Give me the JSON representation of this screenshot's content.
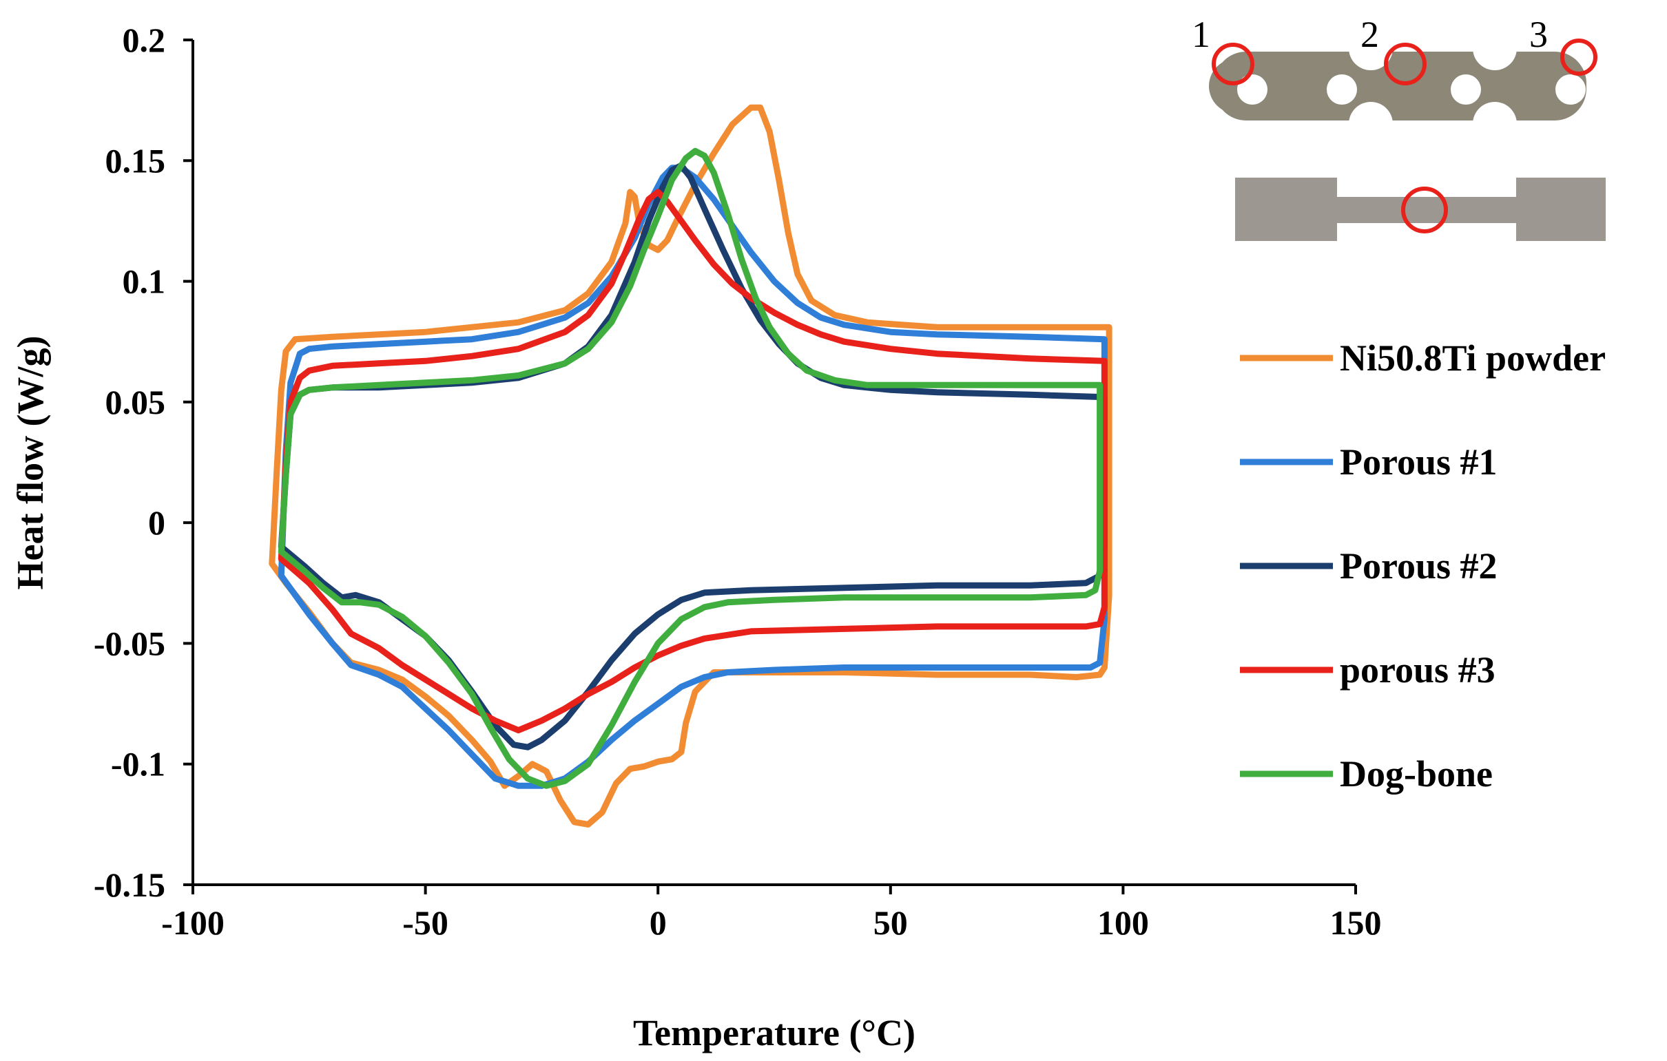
{
  "chart_data": {
    "type": "line",
    "title": "",
    "xlabel": "Temperature (°C)",
    "ylabel": "Heat flow (W/g)",
    "xlim": [
      -100,
      150
    ],
    "ylim": [
      -0.15,
      0.2
    ],
    "xticks": [
      -100,
      -50,
      0,
      50,
      100,
      150
    ],
    "xtick_labels": [
      "-100",
      "-50",
      "0",
      "50",
      "100",
      "150"
    ],
    "yticks": [
      -0.15,
      -0.1,
      -0.05,
      0,
      0.05,
      0.1,
      0.15,
      0.2
    ],
    "ytick_labels": [
      "-0.15",
      "-0.1",
      "-0.05",
      "0",
      "0.05",
      "0.1",
      "0.15",
      "0.2"
    ],
    "grid": false,
    "legend_position": "right",
    "series": [
      {
        "name": "Ni50.8Ti powder",
        "color": "#F28C33",
        "points": [
          [
            -83,
            -0.017
          ],
          [
            -82,
            0.02
          ],
          [
            -81,
            0.055
          ],
          [
            -80,
            0.071
          ],
          [
            -78,
            0.076
          ],
          [
            -70,
            0.077
          ],
          [
            -60,
            0.078
          ],
          [
            -50,
            0.079
          ],
          [
            -40,
            0.081
          ],
          [
            -30,
            0.083
          ],
          [
            -20,
            0.088
          ],
          [
            -15,
            0.095
          ],
          [
            -10,
            0.108
          ],
          [
            -7,
            0.124
          ],
          [
            -6,
            0.137
          ],
          [
            -5,
            0.135
          ],
          [
            -4,
            0.124
          ],
          [
            -2,
            0.115
          ],
          [
            0,
            0.113
          ],
          [
            2,
            0.117
          ],
          [
            4,
            0.125
          ],
          [
            8,
            0.14
          ],
          [
            12,
            0.153
          ],
          [
            16,
            0.165
          ],
          [
            20,
            0.172
          ],
          [
            22,
            0.172
          ],
          [
            24,
            0.162
          ],
          [
            26,
            0.142
          ],
          [
            28,
            0.12
          ],
          [
            30,
            0.103
          ],
          [
            33,
            0.092
          ],
          [
            38,
            0.086
          ],
          [
            45,
            0.083
          ],
          [
            60,
            0.081
          ],
          [
            80,
            0.081
          ],
          [
            97,
            0.081
          ],
          [
            97,
            0.06
          ],
          [
            97,
            -0.03
          ],
          [
            96,
            -0.06
          ],
          [
            95,
            -0.063
          ],
          [
            90,
            -0.064
          ],
          [
            80,
            -0.063
          ],
          [
            60,
            -0.063
          ],
          [
            40,
            -0.062
          ],
          [
            20,
            -0.062
          ],
          [
            12,
            -0.062
          ],
          [
            8,
            -0.07
          ],
          [
            6,
            -0.083
          ],
          [
            5,
            -0.095
          ],
          [
            3,
            -0.098
          ],
          [
            0,
            -0.099
          ],
          [
            -3,
            -0.101
          ],
          [
            -6,
            -0.102
          ],
          [
            -9,
            -0.108
          ],
          [
            -12,
            -0.12
          ],
          [
            -15,
            -0.125
          ],
          [
            -18,
            -0.124
          ],
          [
            -21,
            -0.115
          ],
          [
            -24,
            -0.103
          ],
          [
            -27,
            -0.1
          ],
          [
            -30,
            -0.105
          ],
          [
            -33,
            -0.109
          ],
          [
            -36,
            -0.099
          ],
          [
            -40,
            -0.09
          ],
          [
            -45,
            -0.08
          ],
          [
            -50,
            -0.072
          ],
          [
            -55,
            -0.065
          ],
          [
            -60,
            -0.061
          ],
          [
            -66,
            -0.058
          ],
          [
            -70,
            -0.05
          ],
          [
            -75,
            -0.037
          ],
          [
            -80,
            -0.025
          ],
          [
            -83,
            -0.017
          ]
        ]
      },
      {
        "name": "Porous #1",
        "color": "#2F7ED8",
        "points": [
          [
            -81,
            -0.022
          ],
          [
            -80,
            0.03
          ],
          [
            -79,
            0.058
          ],
          [
            -77,
            0.07
          ],
          [
            -75,
            0.072
          ],
          [
            -70,
            0.073
          ],
          [
            -60,
            0.074
          ],
          [
            -50,
            0.075
          ],
          [
            -40,
            0.076
          ],
          [
            -30,
            0.079
          ],
          [
            -20,
            0.085
          ],
          [
            -15,
            0.091
          ],
          [
            -10,
            0.102
          ],
          [
            -5,
            0.118
          ],
          [
            -2,
            0.132
          ],
          [
            1,
            0.143
          ],
          [
            3,
            0.147
          ],
          [
            5,
            0.147
          ],
          [
            8,
            0.143
          ],
          [
            12,
            0.134
          ],
          [
            16,
            0.123
          ],
          [
            20,
            0.112
          ],
          [
            25,
            0.1
          ],
          [
            30,
            0.091
          ],
          [
            35,
            0.085
          ],
          [
            40,
            0.082
          ],
          [
            50,
            0.079
          ],
          [
            60,
            0.078
          ],
          [
            80,
            0.077
          ],
          [
            96,
            0.076
          ],
          [
            96,
            0.05
          ],
          [
            96,
            -0.04
          ],
          [
            95,
            -0.058
          ],
          [
            93,
            -0.06
          ],
          [
            80,
            -0.06
          ],
          [
            60,
            -0.06
          ],
          [
            40,
            -0.06
          ],
          [
            25,
            -0.061
          ],
          [
            15,
            -0.062
          ],
          [
            10,
            -0.064
          ],
          [
            5,
            -0.068
          ],
          [
            0,
            -0.075
          ],
          [
            -5,
            -0.082
          ],
          [
            -10,
            -0.09
          ],
          [
            -15,
            -0.099
          ],
          [
            -20,
            -0.106
          ],
          [
            -25,
            -0.109
          ],
          [
            -30,
            -0.109
          ],
          [
            -35,
            -0.106
          ],
          [
            -40,
            -0.096
          ],
          [
            -45,
            -0.086
          ],
          [
            -50,
            -0.077
          ],
          [
            -55,
            -0.068
          ],
          [
            -60,
            -0.063
          ],
          [
            -66,
            -0.059
          ],
          [
            -70,
            -0.05
          ],
          [
            -75,
            -0.038
          ],
          [
            -81,
            -0.022
          ]
        ]
      },
      {
        "name": "Porous #2",
        "color": "#1B3E6E",
        "points": [
          [
            -81,
            -0.01
          ],
          [
            -80,
            0.02
          ],
          [
            -79,
            0.045
          ],
          [
            -77,
            0.053
          ],
          [
            -75,
            0.055
          ],
          [
            -70,
            0.056
          ],
          [
            -60,
            0.056
          ],
          [
            -50,
            0.057
          ],
          [
            -40,
            0.058
          ],
          [
            -30,
            0.06
          ],
          [
            -20,
            0.066
          ],
          [
            -15,
            0.073
          ],
          [
            -10,
            0.086
          ],
          [
            -5,
            0.108
          ],
          [
            -2,
            0.125
          ],
          [
            1,
            0.139
          ],
          [
            3,
            0.146
          ],
          [
            5,
            0.148
          ],
          [
            7,
            0.143
          ],
          [
            10,
            0.13
          ],
          [
            14,
            0.113
          ],
          [
            18,
            0.097
          ],
          [
            22,
            0.084
          ],
          [
            26,
            0.074
          ],
          [
            30,
            0.066
          ],
          [
            35,
            0.06
          ],
          [
            40,
            0.057
          ],
          [
            50,
            0.055
          ],
          [
            60,
            0.054
          ],
          [
            80,
            0.053
          ],
          [
            96,
            0.052
          ],
          [
            96,
            0.04
          ],
          [
            96,
            -0.01
          ],
          [
            95,
            -0.022
          ],
          [
            92,
            -0.025
          ],
          [
            80,
            -0.026
          ],
          [
            60,
            -0.026
          ],
          [
            40,
            -0.027
          ],
          [
            20,
            -0.028
          ],
          [
            10,
            -0.029
          ],
          [
            5,
            -0.032
          ],
          [
            0,
            -0.038
          ],
          [
            -5,
            -0.046
          ],
          [
            -10,
            -0.057
          ],
          [
            -15,
            -0.07
          ],
          [
            -20,
            -0.082
          ],
          [
            -25,
            -0.09
          ],
          [
            -28,
            -0.093
          ],
          [
            -31,
            -0.092
          ],
          [
            -35,
            -0.084
          ],
          [
            -40,
            -0.07
          ],
          [
            -45,
            -0.057
          ],
          [
            -50,
            -0.047
          ],
          [
            -55,
            -0.04
          ],
          [
            -60,
            -0.033
          ],
          [
            -65,
            -0.03
          ],
          [
            -68,
            -0.031
          ],
          [
            -72,
            -0.025
          ],
          [
            -76,
            -0.018
          ],
          [
            -81,
            -0.01
          ]
        ]
      },
      {
        "name": "porous #3",
        "color": "#E8211B",
        "points": [
          [
            -81,
            -0.015
          ],
          [
            -80,
            0.025
          ],
          [
            -79,
            0.05
          ],
          [
            -77,
            0.06
          ],
          [
            -75,
            0.063
          ],
          [
            -70,
            0.065
          ],
          [
            -60,
            0.066
          ],
          [
            -50,
            0.067
          ],
          [
            -40,
            0.069
          ],
          [
            -30,
            0.072
          ],
          [
            -20,
            0.079
          ],
          [
            -15,
            0.086
          ],
          [
            -10,
            0.099
          ],
          [
            -7,
            0.112
          ],
          [
            -4,
            0.126
          ],
          [
            -2,
            0.134
          ],
          [
            0,
            0.137
          ],
          [
            2,
            0.133
          ],
          [
            5,
            0.125
          ],
          [
            8,
            0.117
          ],
          [
            12,
            0.107
          ],
          [
            16,
            0.099
          ],
          [
            20,
            0.093
          ],
          [
            25,
            0.087
          ],
          [
            30,
            0.082
          ],
          [
            35,
            0.078
          ],
          [
            40,
            0.075
          ],
          [
            50,
            0.072
          ],
          [
            60,
            0.07
          ],
          [
            80,
            0.068
          ],
          [
            96,
            0.067
          ],
          [
            96,
            0.05
          ],
          [
            96,
            -0.035
          ],
          [
            95,
            -0.042
          ],
          [
            92,
            -0.043
          ],
          [
            80,
            -0.043
          ],
          [
            60,
            -0.043
          ],
          [
            40,
            -0.044
          ],
          [
            20,
            -0.045
          ],
          [
            10,
            -0.048
          ],
          [
            5,
            -0.051
          ],
          [
            0,
            -0.055
          ],
          [
            -5,
            -0.06
          ],
          [
            -10,
            -0.066
          ],
          [
            -15,
            -0.071
          ],
          [
            -20,
            -0.077
          ],
          [
            -25,
            -0.082
          ],
          [
            -30,
            -0.086
          ],
          [
            -35,
            -0.082
          ],
          [
            -40,
            -0.077
          ],
          [
            -45,
            -0.071
          ],
          [
            -50,
            -0.065
          ],
          [
            -55,
            -0.059
          ],
          [
            -60,
            -0.052
          ],
          [
            -66,
            -0.046
          ],
          [
            -70,
            -0.036
          ],
          [
            -75,
            -0.025
          ],
          [
            -81,
            -0.015
          ]
        ]
      },
      {
        "name": "Dog-bone",
        "color": "#3FAE3F",
        "points": [
          [
            -81,
            -0.012
          ],
          [
            -80,
            0.02
          ],
          [
            -79,
            0.045
          ],
          [
            -77,
            0.053
          ],
          [
            -75,
            0.055
          ],
          [
            -70,
            0.056
          ],
          [
            -60,
            0.057
          ],
          [
            -50,
            0.058
          ],
          [
            -40,
            0.059
          ],
          [
            -30,
            0.061
          ],
          [
            -20,
            0.066
          ],
          [
            -15,
            0.072
          ],
          [
            -10,
            0.083
          ],
          [
            -6,
            0.098
          ],
          [
            -3,
            0.113
          ],
          [
            0,
            0.127
          ],
          [
            3,
            0.142
          ],
          [
            6,
            0.151
          ],
          [
            8,
            0.154
          ],
          [
            10,
            0.152
          ],
          [
            12,
            0.145
          ],
          [
            15,
            0.128
          ],
          [
            18,
            0.109
          ],
          [
            21,
            0.093
          ],
          [
            24,
            0.081
          ],
          [
            28,
            0.07
          ],
          [
            32,
            0.063
          ],
          [
            38,
            0.059
          ],
          [
            45,
            0.057
          ],
          [
            60,
            0.057
          ],
          [
            80,
            0.057
          ],
          [
            95,
            0.057
          ],
          [
            95,
            0.04
          ],
          [
            95,
            -0.02
          ],
          [
            94,
            -0.028
          ],
          [
            92,
            -0.03
          ],
          [
            80,
            -0.031
          ],
          [
            60,
            -0.031
          ],
          [
            40,
            -0.031
          ],
          [
            25,
            -0.032
          ],
          [
            15,
            -0.033
          ],
          [
            10,
            -0.035
          ],
          [
            5,
            -0.04
          ],
          [
            0,
            -0.05
          ],
          [
            -5,
            -0.066
          ],
          [
            -10,
            -0.084
          ],
          [
            -15,
            -0.1
          ],
          [
            -20,
            -0.107
          ],
          [
            -24,
            -0.109
          ],
          [
            -28,
            -0.106
          ],
          [
            -32,
            -0.098
          ],
          [
            -36,
            -0.085
          ],
          [
            -40,
            -0.071
          ],
          [
            -45,
            -0.058
          ],
          [
            -50,
            -0.047
          ],
          [
            -55,
            -0.039
          ],
          [
            -60,
            -0.034
          ],
          [
            -64,
            -0.033
          ],
          [
            -68,
            -0.033
          ],
          [
            -72,
            -0.027
          ],
          [
            -76,
            -0.02
          ],
          [
            -81,
            -0.012
          ]
        ]
      }
    ],
    "annotations": {
      "inset_labels": [
        "1",
        "2",
        "3"
      ]
    }
  }
}
